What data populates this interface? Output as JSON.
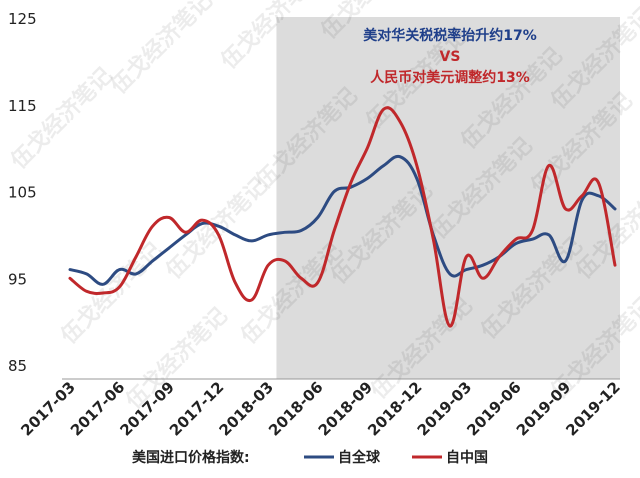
{
  "chart_data": {
    "type": "line",
    "ylim": [
      85,
      125
    ],
    "yticks": [
      "125",
      "115",
      "105",
      "95",
      "85"
    ],
    "ytick_values": [
      125,
      115,
      105,
      95,
      85
    ],
    "x": [
      "2017-03",
      "2017-04",
      "2017-05",
      "2017-06",
      "2017-07",
      "2017-08",
      "2017-09",
      "2017-10",
      "2017-11",
      "2017-12",
      "2018-01",
      "2018-02",
      "2018-03",
      "2018-04",
      "2018-05",
      "2018-06",
      "2018-07",
      "2018-08",
      "2018-09",
      "2018-10",
      "2018-11",
      "2018-12",
      "2019-01",
      "2019-02",
      "2019-03",
      "2019-04",
      "2019-05",
      "2019-06",
      "2019-07",
      "2019-08",
      "2019-09",
      "2019-10",
      "2019-11",
      "2019-12"
    ],
    "xticks": [
      "2017-03",
      "2017-06",
      "2017-09",
      "2017-12",
      "2018-03",
      "2018-06",
      "2018-09",
      "2018-12",
      "2019-03",
      "2019-06",
      "2019-09",
      "2019-12"
    ],
    "shaded_range": [
      "2018-04",
      "2019-12"
    ],
    "annotation": {
      "line1": "美对华关税税率抬升约17%",
      "line2": "VS",
      "line3": "人民币对美元调整约13%",
      "color_line1": "#1f3f8a",
      "color_line23": "#c0282b"
    },
    "legend": {
      "title": "美国进口价格指数:",
      "position": "bottom"
    },
    "series": [
      {
        "name": "自全球",
        "color": "#2d4b82",
        "values": [
          96.0,
          95.5,
          94.3,
          96.0,
          95.5,
          97.0,
          98.5,
          100.0,
          101.3,
          101.0,
          100.0,
          99.3,
          100.0,
          100.3,
          100.5,
          102.0,
          105.0,
          105.5,
          106.5,
          108.0,
          109.0,
          106.5,
          100.0,
          95.5,
          96.0,
          96.5,
          97.5,
          99.0,
          99.5,
          100.0,
          97.0,
          104.0,
          104.5,
          103.0
        ]
      },
      {
        "name": "自中国",
        "color": "#c0282b",
        "values": [
          95.0,
          93.5,
          93.3,
          94.0,
          97.5,
          101.0,
          102.0,
          100.3,
          101.7,
          100.0,
          94.5,
          92.5,
          96.5,
          97.0,
          95.0,
          94.5,
          100.5,
          106.0,
          110.0,
          114.5,
          113.0,
          108.0,
          99.5,
          89.5,
          97.5,
          95.0,
          97.5,
          99.5,
          100.5,
          108.0,
          103.0,
          104.5,
          106.0,
          96.5
        ]
      }
    ]
  },
  "watermark": "伍戈经济笔记"
}
